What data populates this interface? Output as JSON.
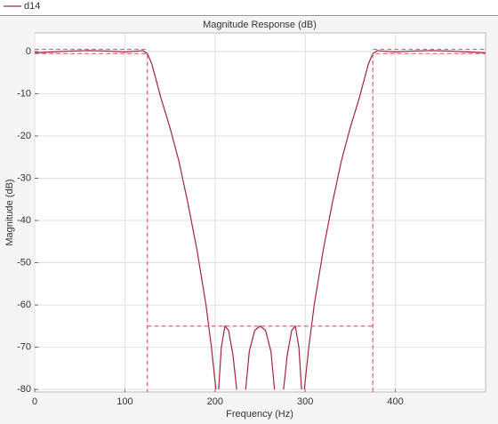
{
  "chart_data": {
    "type": "line",
    "title": "Magnitude Response (dB)",
    "xlabel": "Frequency (Hz)",
    "ylabel": "Magnitude (dB)",
    "xlim": [
      0,
      500
    ],
    "ylim": [
      -80.6,
      4.4
    ],
    "xticks": [
      0,
      100,
      200,
      300,
      400
    ],
    "yticks": [
      0,
      -10,
      -20,
      -30,
      -40,
      -50,
      -60,
      -70,
      -80
    ],
    "grid": true,
    "legend": "top",
    "series": [
      {
        "name": "d14",
        "color": "#a3243f",
        "x": [
          0,
          20,
          40,
          60,
          80,
          100,
          115,
          120,
          125,
          130,
          135,
          140,
          150,
          160,
          170,
          180,
          190,
          196,
          201,
          null,
          204,
          207,
          211,
          215,
          220,
          224,
          null,
          234,
          238,
          244,
          250,
          256,
          262,
          266,
          null,
          276,
          280,
          285,
          289,
          293,
          296,
          null,
          299,
          304,
          310,
          320,
          330,
          340,
          350,
          360,
          365,
          370,
          375,
          380,
          385,
          400,
          420,
          440,
          460,
          480,
          500
        ],
        "values": [
          -0.3,
          -0.1,
          0.1,
          0.2,
          0.1,
          -0.1,
          0.1,
          0.2,
          -0.5,
          -3,
          -7,
          -11,
          -18,
          -26,
          -36,
          -47,
          -60,
          -70,
          -80,
          null,
          -80,
          -70,
          -65,
          -66,
          -72,
          -80,
          null,
          -80,
          -71,
          -66,
          -65,
          -66,
          -71,
          -80,
          null,
          -80,
          -72,
          -66,
          -65,
          -70,
          -80,
          null,
          -80,
          -70,
          -60,
          -47,
          -36,
          -26,
          -18,
          -11,
          -7,
          -3,
          -0.5,
          0.2,
          0.1,
          -0.1,
          0.1,
          0.2,
          0.1,
          -0.1,
          -0.3
        ]
      },
      {
        "color": "#e8636f",
        "dash": true,
        "x": [
          0,
          125,
          null,
          0,
          125,
          125,
          null,
          125,
          375,
          null,
          375,
          375,
          500,
          null,
          375,
          500
        ],
        "values": [
          0.5,
          0.5,
          null,
          -0.5,
          -0.5,
          -80.6,
          null,
          -65,
          -65,
          null,
          -80.6,
          -0.5,
          -0.5,
          null,
          0.5,
          0.5
        ]
      }
    ]
  }
}
